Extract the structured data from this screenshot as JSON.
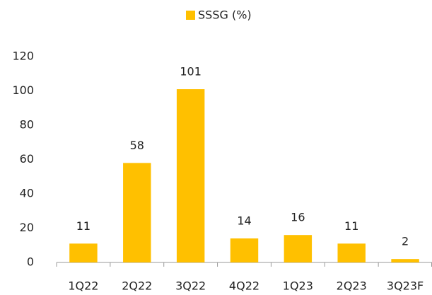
{
  "chart_data": {
    "type": "bar",
    "categories": [
      "1Q22",
      "2Q22",
      "3Q22",
      "4Q22",
      "1Q23",
      "2Q23",
      "3Q23F"
    ],
    "series": [
      {
        "name": "SSSG (%)",
        "color": "#ffc000",
        "values": [
          11,
          58,
          101,
          14,
          16,
          11,
          2
        ]
      }
    ],
    "ylim": [
      0,
      120
    ],
    "yticks": [
      0,
      20,
      40,
      60,
      80,
      100,
      120
    ],
    "grid": false,
    "legend": "top"
  }
}
